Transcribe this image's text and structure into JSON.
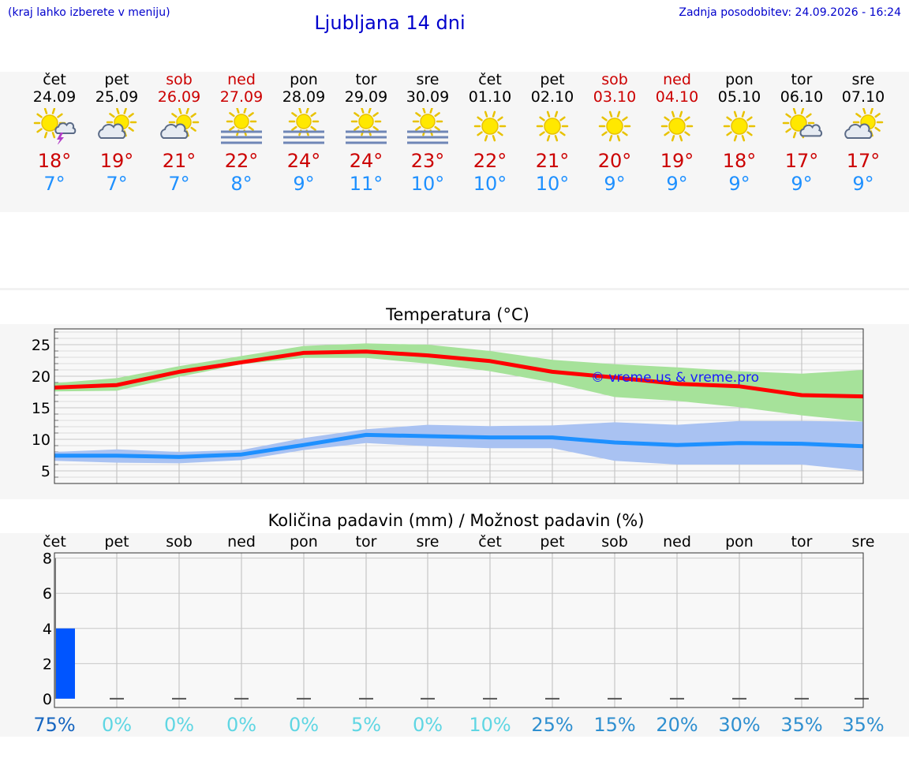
{
  "header": {
    "left_note": "(kraj lahko izberete v meniju)",
    "title": "Ljubljana 14 dni",
    "updated": "Zadnja posodobitev: 24.09.2026 - 16:24"
  },
  "days": [
    {
      "name": "čet",
      "date": "24.09",
      "tmax": "18°",
      "tmin": "7°",
      "icon": "sun-thunderstorm-icon",
      "weekend": false
    },
    {
      "name": "pet",
      "date": "25.09",
      "tmax": "19°",
      "tmin": "7°",
      "icon": "sun-cloud-icon",
      "weekend": false
    },
    {
      "name": "sob",
      "date": "26.09",
      "tmax": "21°",
      "tmin": "7°",
      "icon": "sun-cloud-icon",
      "weekend": true
    },
    {
      "name": "ned",
      "date": "27.09",
      "tmax": "22°",
      "tmin": "8°",
      "icon": "sun-fog-icon",
      "weekend": true
    },
    {
      "name": "pon",
      "date": "28.09",
      "tmax": "24°",
      "tmin": "9°",
      "icon": "sun-fog-icon",
      "weekend": false
    },
    {
      "name": "tor",
      "date": "29.09",
      "tmax": "24°",
      "tmin": "11°",
      "icon": "sun-fog-icon",
      "weekend": false
    },
    {
      "name": "sre",
      "date": "30.09",
      "tmax": "23°",
      "tmin": "10°",
      "icon": "sun-fog-icon",
      "weekend": false
    },
    {
      "name": "čet",
      "date": "01.10",
      "tmax": "22°",
      "tmin": "10°",
      "icon": "sun-icon",
      "weekend": false
    },
    {
      "name": "pet",
      "date": "02.10",
      "tmax": "21°",
      "tmin": "10°",
      "icon": "sun-icon",
      "weekend": false
    },
    {
      "name": "sob",
      "date": "03.10",
      "tmax": "20°",
      "tmin": "9°",
      "icon": "sun-icon",
      "weekend": true
    },
    {
      "name": "ned",
      "date": "04.10",
      "tmax": "19°",
      "tmin": "9°",
      "icon": "sun-icon",
      "weekend": true
    },
    {
      "name": "pon",
      "date": "05.10",
      "tmax": "18°",
      "tmin": "9°",
      "icon": "sun-icon",
      "weekend": false
    },
    {
      "name": "tor",
      "date": "06.10",
      "tmax": "17°",
      "tmin": "9°",
      "icon": "sun-small-cloud-icon",
      "weekend": false
    },
    {
      "name": "sre",
      "date": "07.10",
      "tmax": "17°",
      "tmin": "9°",
      "icon": "sun-cloud-icon",
      "weekend": false
    }
  ],
  "chart_data": [
    {
      "type": "line",
      "title": "Temperatura (°C)",
      "watermark": "© vreme.us & vreme.pro",
      "x": [
        "24.09",
        "25.09",
        "26.09",
        "27.09",
        "28.09",
        "29.09",
        "30.09",
        "01.10",
        "02.10",
        "03.10",
        "04.10",
        "05.10",
        "06.10",
        "07.10"
      ],
      "ylim": [
        3,
        27.5
      ],
      "yticks": [
        5,
        10,
        15,
        20,
        25
      ],
      "grid": true,
      "series": [
        {
          "values": [
            18.2,
            18.6,
            20.7,
            22.2,
            23.7,
            23.9,
            23.3,
            22.4,
            20.7,
            19.8,
            18.8,
            18.4,
            17.0,
            16.8
          ],
          "band_low": [
            17.6,
            17.7,
            19.9,
            21.9,
            22.9,
            22.9,
            22.0,
            20.8,
            19.0,
            16.7,
            16.1,
            15.1,
            13.8,
            12.8
          ],
          "band_high": [
            18.9,
            19.7,
            21.6,
            23.2,
            24.8,
            25.2,
            25.0,
            24.0,
            22.6,
            21.9,
            21.4,
            20.8,
            20.4,
            21.0
          ],
          "color": "#ff0000",
          "band_color": "#a6e29a"
        },
        {
          "values": [
            7.4,
            7.4,
            7.2,
            7.6,
            9.1,
            10.7,
            10.5,
            10.3,
            10.3,
            9.5,
            9.1,
            9.4,
            9.3,
            8.9
          ],
          "band_low": [
            6.6,
            6.3,
            6.2,
            6.7,
            8.3,
            9.4,
            8.9,
            8.6,
            8.6,
            6.6,
            6.0,
            6.0,
            6.0,
            5.0
          ],
          "band_high": [
            8.0,
            8.4,
            8.0,
            8.3,
            10.2,
            11.6,
            12.3,
            12.1,
            12.2,
            12.7,
            12.3,
            12.9,
            12.9,
            12.8
          ],
          "color": "#1e90ff",
          "band_color": "#a9c2f2"
        }
      ]
    },
    {
      "type": "bar",
      "title": "Količina padavin (mm) / Možnost padavin (%)",
      "categories": [
        "čet",
        "pet",
        "sob",
        "ned",
        "pon",
        "tor",
        "sre",
        "čet",
        "pet",
        "sob",
        "ned",
        "pon",
        "tor",
        "sre"
      ],
      "values": [
        4,
        0,
        0,
        0,
        0,
        0,
        0,
        0,
        0,
        0,
        0,
        0,
        0,
        0
      ],
      "ylim": [
        -0.5,
        8.3
      ],
      "yticks": [
        0,
        2,
        4,
        6,
        8
      ],
      "probability": [
        "75%",
        "0%",
        "0%",
        "0%",
        "0%",
        "5%",
        "0%",
        "10%",
        "25%",
        "15%",
        "20%",
        "30%",
        "35%",
        "35%"
      ],
      "probability_colors": [
        "#1565c0",
        "#5fd6e3",
        "#5fd6e3",
        "#5fd6e3",
        "#5fd6e3",
        "#5fd6e3",
        "#5fd6e3",
        "#5fd6e3",
        "#2e8fd0",
        "#2e8fd0",
        "#2e8fd0",
        "#2e8fd0",
        "#2e8fd0",
        "#2e8fd0"
      ],
      "bar_color": "#0055ff",
      "grid": true
    }
  ]
}
